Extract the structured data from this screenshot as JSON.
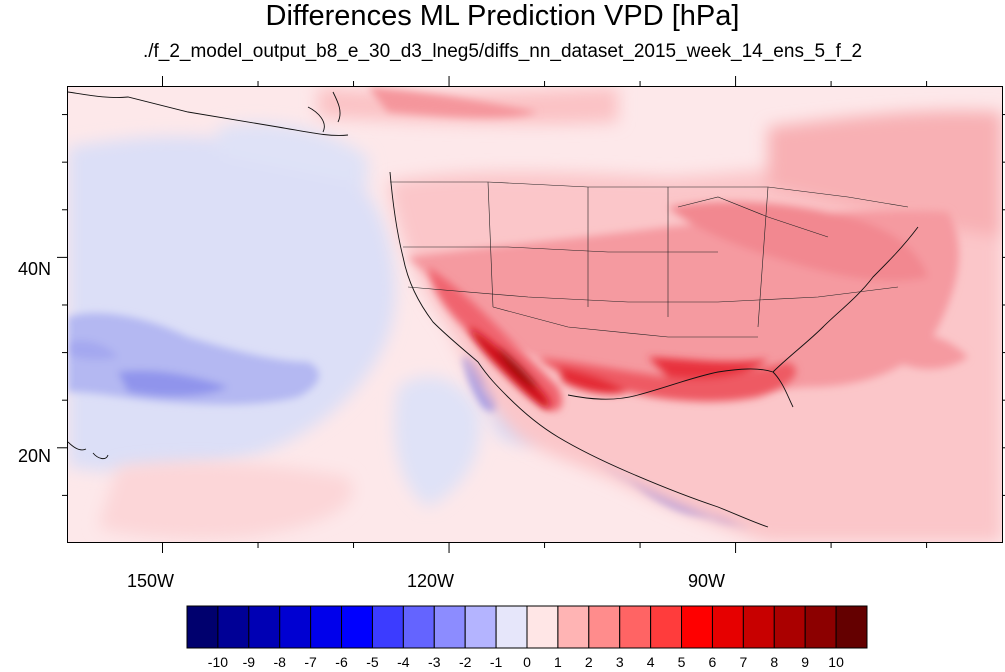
{
  "title": "Differences ML Prediction VPD [hPa]",
  "subtitle": "./f_2_model_output_b8_e_30_d3_lneg5/diffs_nn_dataset_2015_week_14_ens_5_f_2",
  "map": {
    "lon_range": [
      -160,
      -62
    ],
    "lat_range": [
      10,
      58
    ],
    "y_tick_labels": [
      "40N",
      "20N"
    ],
    "x_tick_labels": [
      "150W",
      "120W",
      "90W"
    ]
  },
  "colorbar": {
    "labels": [
      "-10",
      "-9",
      "-8",
      "-7",
      "-6",
      "-5",
      "-4",
      "-3",
      "-2",
      "-1",
      "0",
      "1",
      "2",
      "3",
      "4",
      "5",
      "6",
      "7",
      "8",
      "9",
      "10"
    ],
    "colors": [
      "#00006e",
      "#000096",
      "#0000b4",
      "#0000d2",
      "#0000eb",
      "#0000ff",
      "#3c3cff",
      "#6464ff",
      "#8c8cff",
      "#b4b4ff",
      "#e6e6fa",
      "#ffe6e6",
      "#ffb4b4",
      "#ff8c8c",
      "#ff6464",
      "#ff3c3c",
      "#ff0000",
      "#e60000",
      "#c80000",
      "#aa0000",
      "#8c0000",
      "#640000"
    ]
  }
}
